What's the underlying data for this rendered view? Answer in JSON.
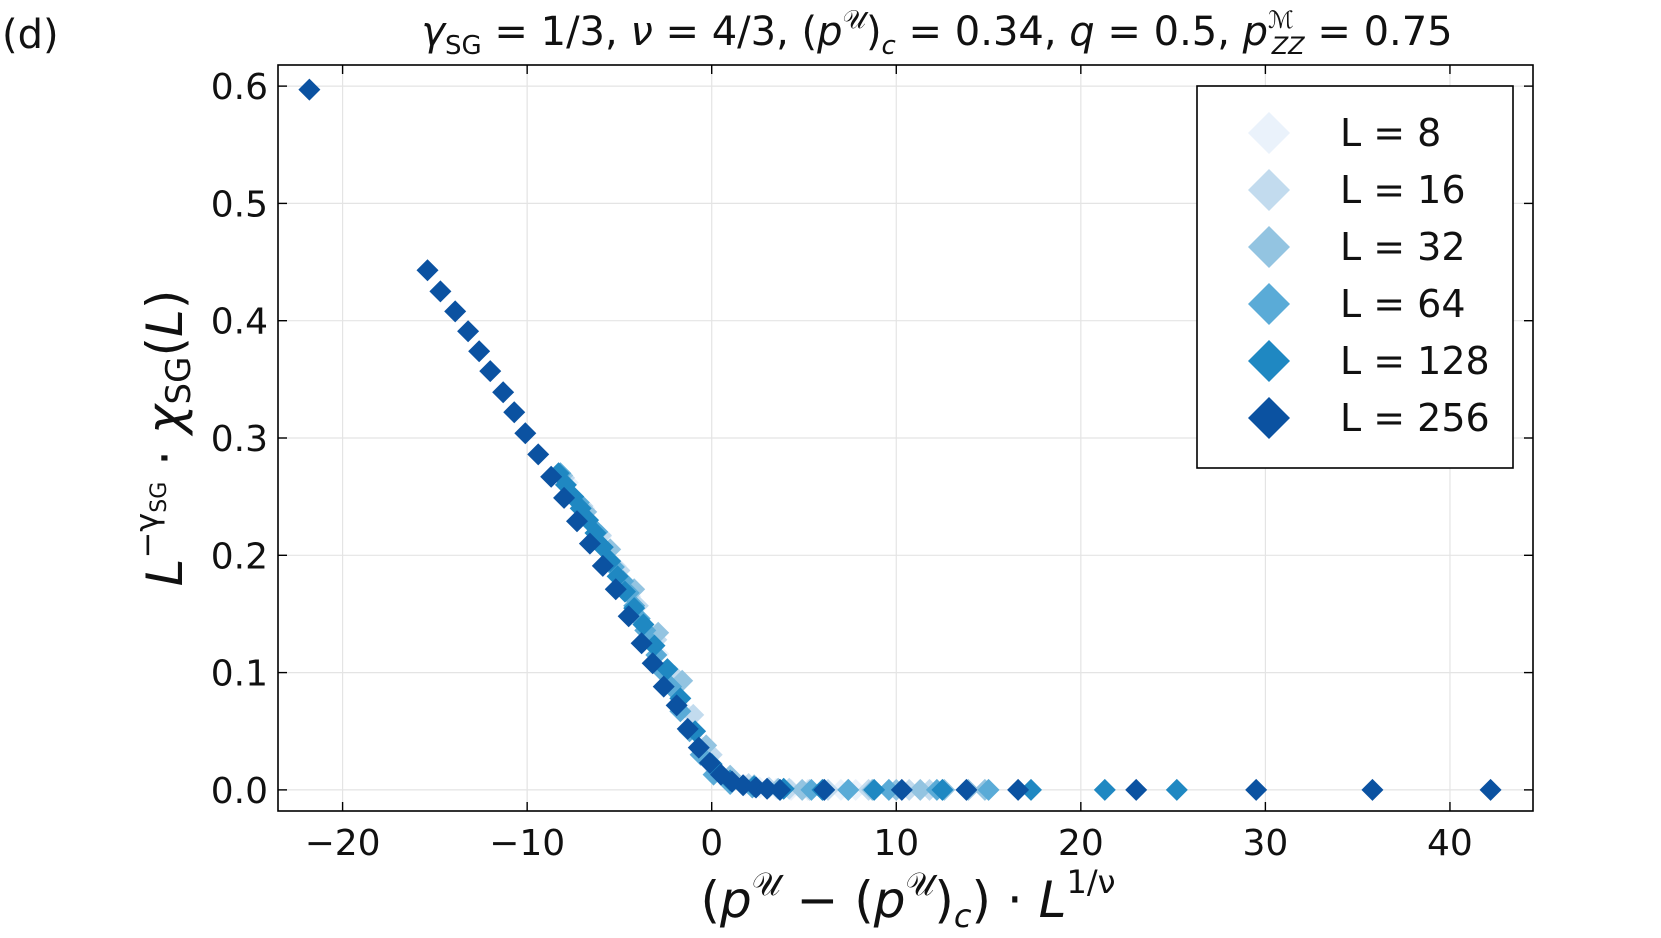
{
  "panel_label": "(d)",
  "chart_data": {
    "type": "scatter",
    "title": "γ_SG = 1/3,  ν = 4/3,  (p^𝒰)_c = 0.34, q = 0.5, p^ℳ_ZZ = 0.75",
    "title_parts": {
      "gamma_sym": "γ",
      "gamma_sub": "SG",
      "gamma_val": " = 1/3,  ",
      "nu_sym": "ν",
      "nu_val": " = 4/3,  (",
      "pU_sym": "p",
      "pU_sup": "𝒰",
      "pc_close": ")",
      "pc_sub": "c",
      "pc_val": " = 0.34, ",
      "q_sym": "q",
      "q_val": " = 0.5, ",
      "pM_sym": "p",
      "pM_sup": "ℳ",
      "pM_sub": "ZZ",
      "pM_val": " = 0.75"
    },
    "xlabel": "(p^𝒰 − (p^𝒰)_c) · L^{1/ν}",
    "xlabel_parts": {
      "open": "(",
      "p1": "p",
      "sup1": "𝒰",
      "minus": " − (",
      "p2": "p",
      "sup2": "𝒰",
      "close2": ")",
      "sub_c": "c",
      "close1": ") · ",
      "L": "L",
      "exp": "1/ν"
    },
    "ylabel": "L^{−γ_SG} · χ_SG(L)",
    "ylabel_parts": {
      "L": "L",
      "exp": "−γ",
      "exp_sub": "SG",
      "dot": " · ",
      "chi": "χ",
      "chi_sub": "SG",
      "arg_open": "(",
      "arg": "L",
      "arg_close": ")"
    },
    "xlim": [
      -23.5,
      44.5
    ],
    "ylim": [
      -0.018,
      0.618
    ],
    "xticks": [
      -20,
      -10,
      0,
      10,
      20,
      30,
      40
    ],
    "xtick_labels": [
      "−20",
      "−10",
      "0",
      "10",
      "20",
      "30",
      "40"
    ],
    "yticks": [
      0.0,
      0.1,
      0.2,
      0.3,
      0.4,
      0.5,
      0.6
    ],
    "ytick_labels": [
      "0.0",
      "0.1",
      "0.2",
      "0.3",
      "0.4",
      "0.5",
      "0.6"
    ],
    "grid": true,
    "legend_position": "top-right",
    "marker": "diamond",
    "series": [
      {
        "name": "L = 8",
        "color": "#eaf2fb",
        "x": [
          -7.8,
          -6.9,
          -6.0,
          -5.2,
          -4.4,
          -3.6,
          -2.9,
          -2.1,
          -1.4,
          -0.6,
          0.2,
          1.0,
          1.8,
          2.6,
          3.5,
          4.3,
          5.2,
          6.1,
          7.0,
          7.8,
          8.7,
          9.6
        ],
        "y": [
          0.262,
          0.24,
          0.216,
          0.191,
          0.165,
          0.139,
          0.116,
          0.09,
          0.066,
          0.038,
          0.017,
          0.008,
          0.004,
          0.002,
          0.001,
          0.0,
          0.0,
          0.0,
          0.0,
          0.0,
          0.0,
          0.0
        ]
      },
      {
        "name": "L = 16",
        "color": "#c2dbee",
        "x": [
          -8.0,
          -7.0,
          -6.0,
          -5.0,
          -4.0,
          -3.0,
          -2.0,
          -1.0,
          0.0,
          1.0,
          2.0,
          3.1,
          4.2,
          5.3,
          6.3,
          7.4,
          8.5,
          9.6,
          10.7,
          11.8
        ],
        "y": [
          0.266,
          0.242,
          0.217,
          0.187,
          0.157,
          0.128,
          0.097,
          0.064,
          0.03,
          0.012,
          0.005,
          0.002,
          0.001,
          0.0,
          0.0,
          0.0,
          0.0,
          0.0,
          0.0,
          0.0
        ]
      },
      {
        "name": "L = 32",
        "color": "#93c4e1",
        "x": [
          -8.1,
          -6.8,
          -5.5,
          -4.2,
          -2.9,
          -1.6,
          -0.3,
          1.0,
          2.3,
          3.6,
          4.9,
          6.1,
          7.4,
          8.7,
          10.0,
          11.3,
          12.6,
          13.9,
          14.8
        ],
        "y": [
          0.268,
          0.237,
          0.205,
          0.171,
          0.134,
          0.093,
          0.038,
          0.012,
          0.004,
          0.001,
          0.0,
          0.0,
          0.0,
          0.0,
          0.0,
          0.0,
          0.0,
          0.0,
          0.0
        ]
      },
      {
        "name": "L = 64",
        "color": "#5aabd7",
        "x": [
          -8.2,
          -7.2,
          -6.2,
          -5.3,
          -4.8,
          -4.5,
          -4.2,
          -3.9,
          -3.6,
          -3.3,
          -3.0,
          -2.6,
          -2.2,
          -1.7,
          -1.2,
          -0.6,
          0.1,
          1.0,
          2.2,
          3.7,
          5.4,
          7.4,
          9.6,
          12.2,
          15.0
        ],
        "y": [
          0.27,
          0.245,
          0.22,
          0.19,
          0.178,
          0.168,
          0.157,
          0.146,
          0.136,
          0.126,
          0.115,
          0.1,
          0.088,
          0.067,
          0.05,
          0.03,
          0.013,
          0.005,
          0.002,
          0.0,
          0.0,
          0.0,
          0.0,
          0.0,
          0.0
        ]
      },
      {
        "name": "L = 128",
        "color": "#1f88c2",
        "x": [
          -8.3,
          -7.9,
          -7.5,
          -7.1,
          -6.7,
          -6.3,
          -5.9,
          -5.5,
          -5.1,
          -4.7,
          -4.2,
          -3.7,
          -3.1,
          -2.4,
          -1.7,
          -0.9,
          0.0,
          1.0,
          2.3,
          3.9,
          6.0,
          8.8,
          12.5,
          17.3,
          21.3,
          25.2
        ],
        "y": [
          0.27,
          0.26,
          0.25,
          0.24,
          0.23,
          0.219,
          0.207,
          0.195,
          0.182,
          0.169,
          0.155,
          0.141,
          0.123,
          0.103,
          0.078,
          0.05,
          0.022,
          0.008,
          0.003,
          0.001,
          0.0,
          0.0,
          0.0,
          0.0,
          0.0,
          0.0
        ]
      },
      {
        "name": "L = 256",
        "color": "#0b52a1",
        "x": [
          -21.8,
          -15.4,
          -14.7,
          -13.9,
          -13.2,
          -12.6,
          -12.0,
          -11.3,
          -10.7,
          -10.1,
          -9.4,
          -8.7,
          -8.0,
          -7.3,
          -6.6,
          -5.9,
          -5.2,
          -4.5,
          -3.8,
          -3.2,
          -2.6,
          -1.9,
          -1.3,
          -0.7,
          -0.1,
          0.5,
          1.1,
          1.7,
          2.4,
          3.0,
          3.7,
          6.1,
          10.3,
          13.8,
          16.6,
          23.0,
          29.5,
          35.8,
          42.2
        ],
        "y": [
          0.597,
          0.443,
          0.425,
          0.408,
          0.391,
          0.374,
          0.357,
          0.339,
          0.322,
          0.304,
          0.286,
          0.267,
          0.249,
          0.229,
          0.21,
          0.191,
          0.171,
          0.148,
          0.125,
          0.108,
          0.088,
          0.072,
          0.052,
          0.036,
          0.023,
          0.013,
          0.007,
          0.004,
          0.002,
          0.001,
          0.0,
          0.0,
          0.0,
          0.0,
          0.0,
          0.0,
          0.0,
          0.0,
          0.0
        ]
      }
    ]
  }
}
